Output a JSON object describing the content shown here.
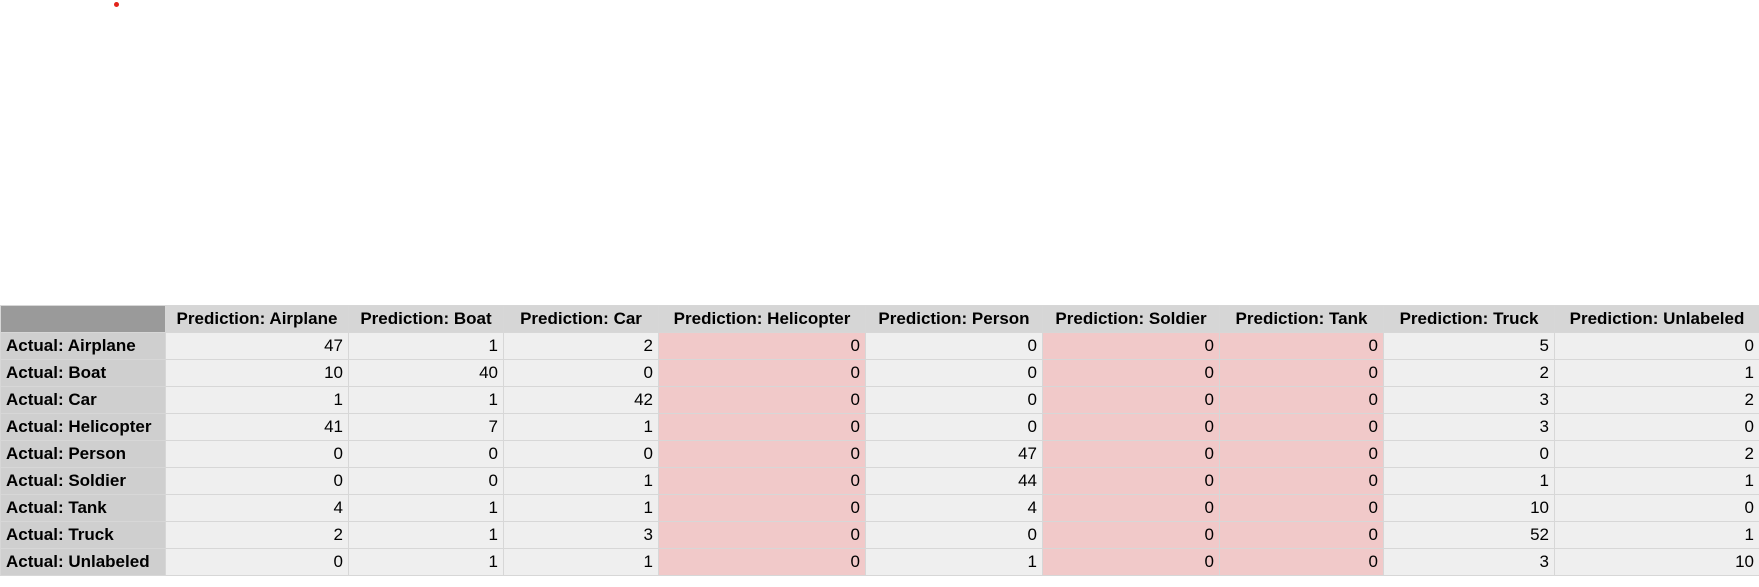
{
  "colors": {
    "dot": "#e2231a",
    "corner": "#9a9a9a",
    "header": "#d6d6d6",
    "row_header": "#cfcfcf",
    "cell": "#efefef",
    "highlight": "#f1c9c9"
  },
  "chart_data": {
    "type": "table",
    "title": "",
    "columns": [
      "Prediction: Airplane",
      "Prediction: Boat",
      "Prediction: Car",
      "Prediction: Helicopter",
      "Prediction: Person",
      "Prediction: Soldier",
      "Prediction: Tank",
      "Prediction: Truck",
      "Prediction: Unlabeled"
    ],
    "rows": [
      "Actual: Airplane",
      "Actual: Boat",
      "Actual: Car",
      "Actual: Helicopter",
      "Actual: Person",
      "Actual: Soldier",
      "Actual: Tank",
      "Actual: Truck",
      "Actual: Unlabeled"
    ],
    "values": [
      [
        47,
        1,
        2,
        0,
        0,
        0,
        0,
        5,
        0
      ],
      [
        10,
        40,
        0,
        0,
        0,
        0,
        0,
        2,
        1
      ],
      [
        1,
        1,
        42,
        0,
        0,
        0,
        0,
        3,
        2
      ],
      [
        41,
        7,
        1,
        0,
        0,
        0,
        0,
        3,
        0
      ],
      [
        0,
        0,
        0,
        0,
        47,
        0,
        0,
        0,
        2
      ],
      [
        0,
        0,
        1,
        0,
        44,
        0,
        0,
        1,
        1
      ],
      [
        4,
        1,
        1,
        0,
        4,
        0,
        0,
        10,
        0
      ],
      [
        2,
        1,
        3,
        0,
        0,
        0,
        0,
        52,
        1
      ],
      [
        0,
        1,
        1,
        0,
        1,
        0,
        0,
        3,
        10
      ]
    ],
    "highlighted_columns": [
      "Prediction: Helicopter",
      "Prediction: Soldier",
      "Prediction: Tank"
    ]
  }
}
